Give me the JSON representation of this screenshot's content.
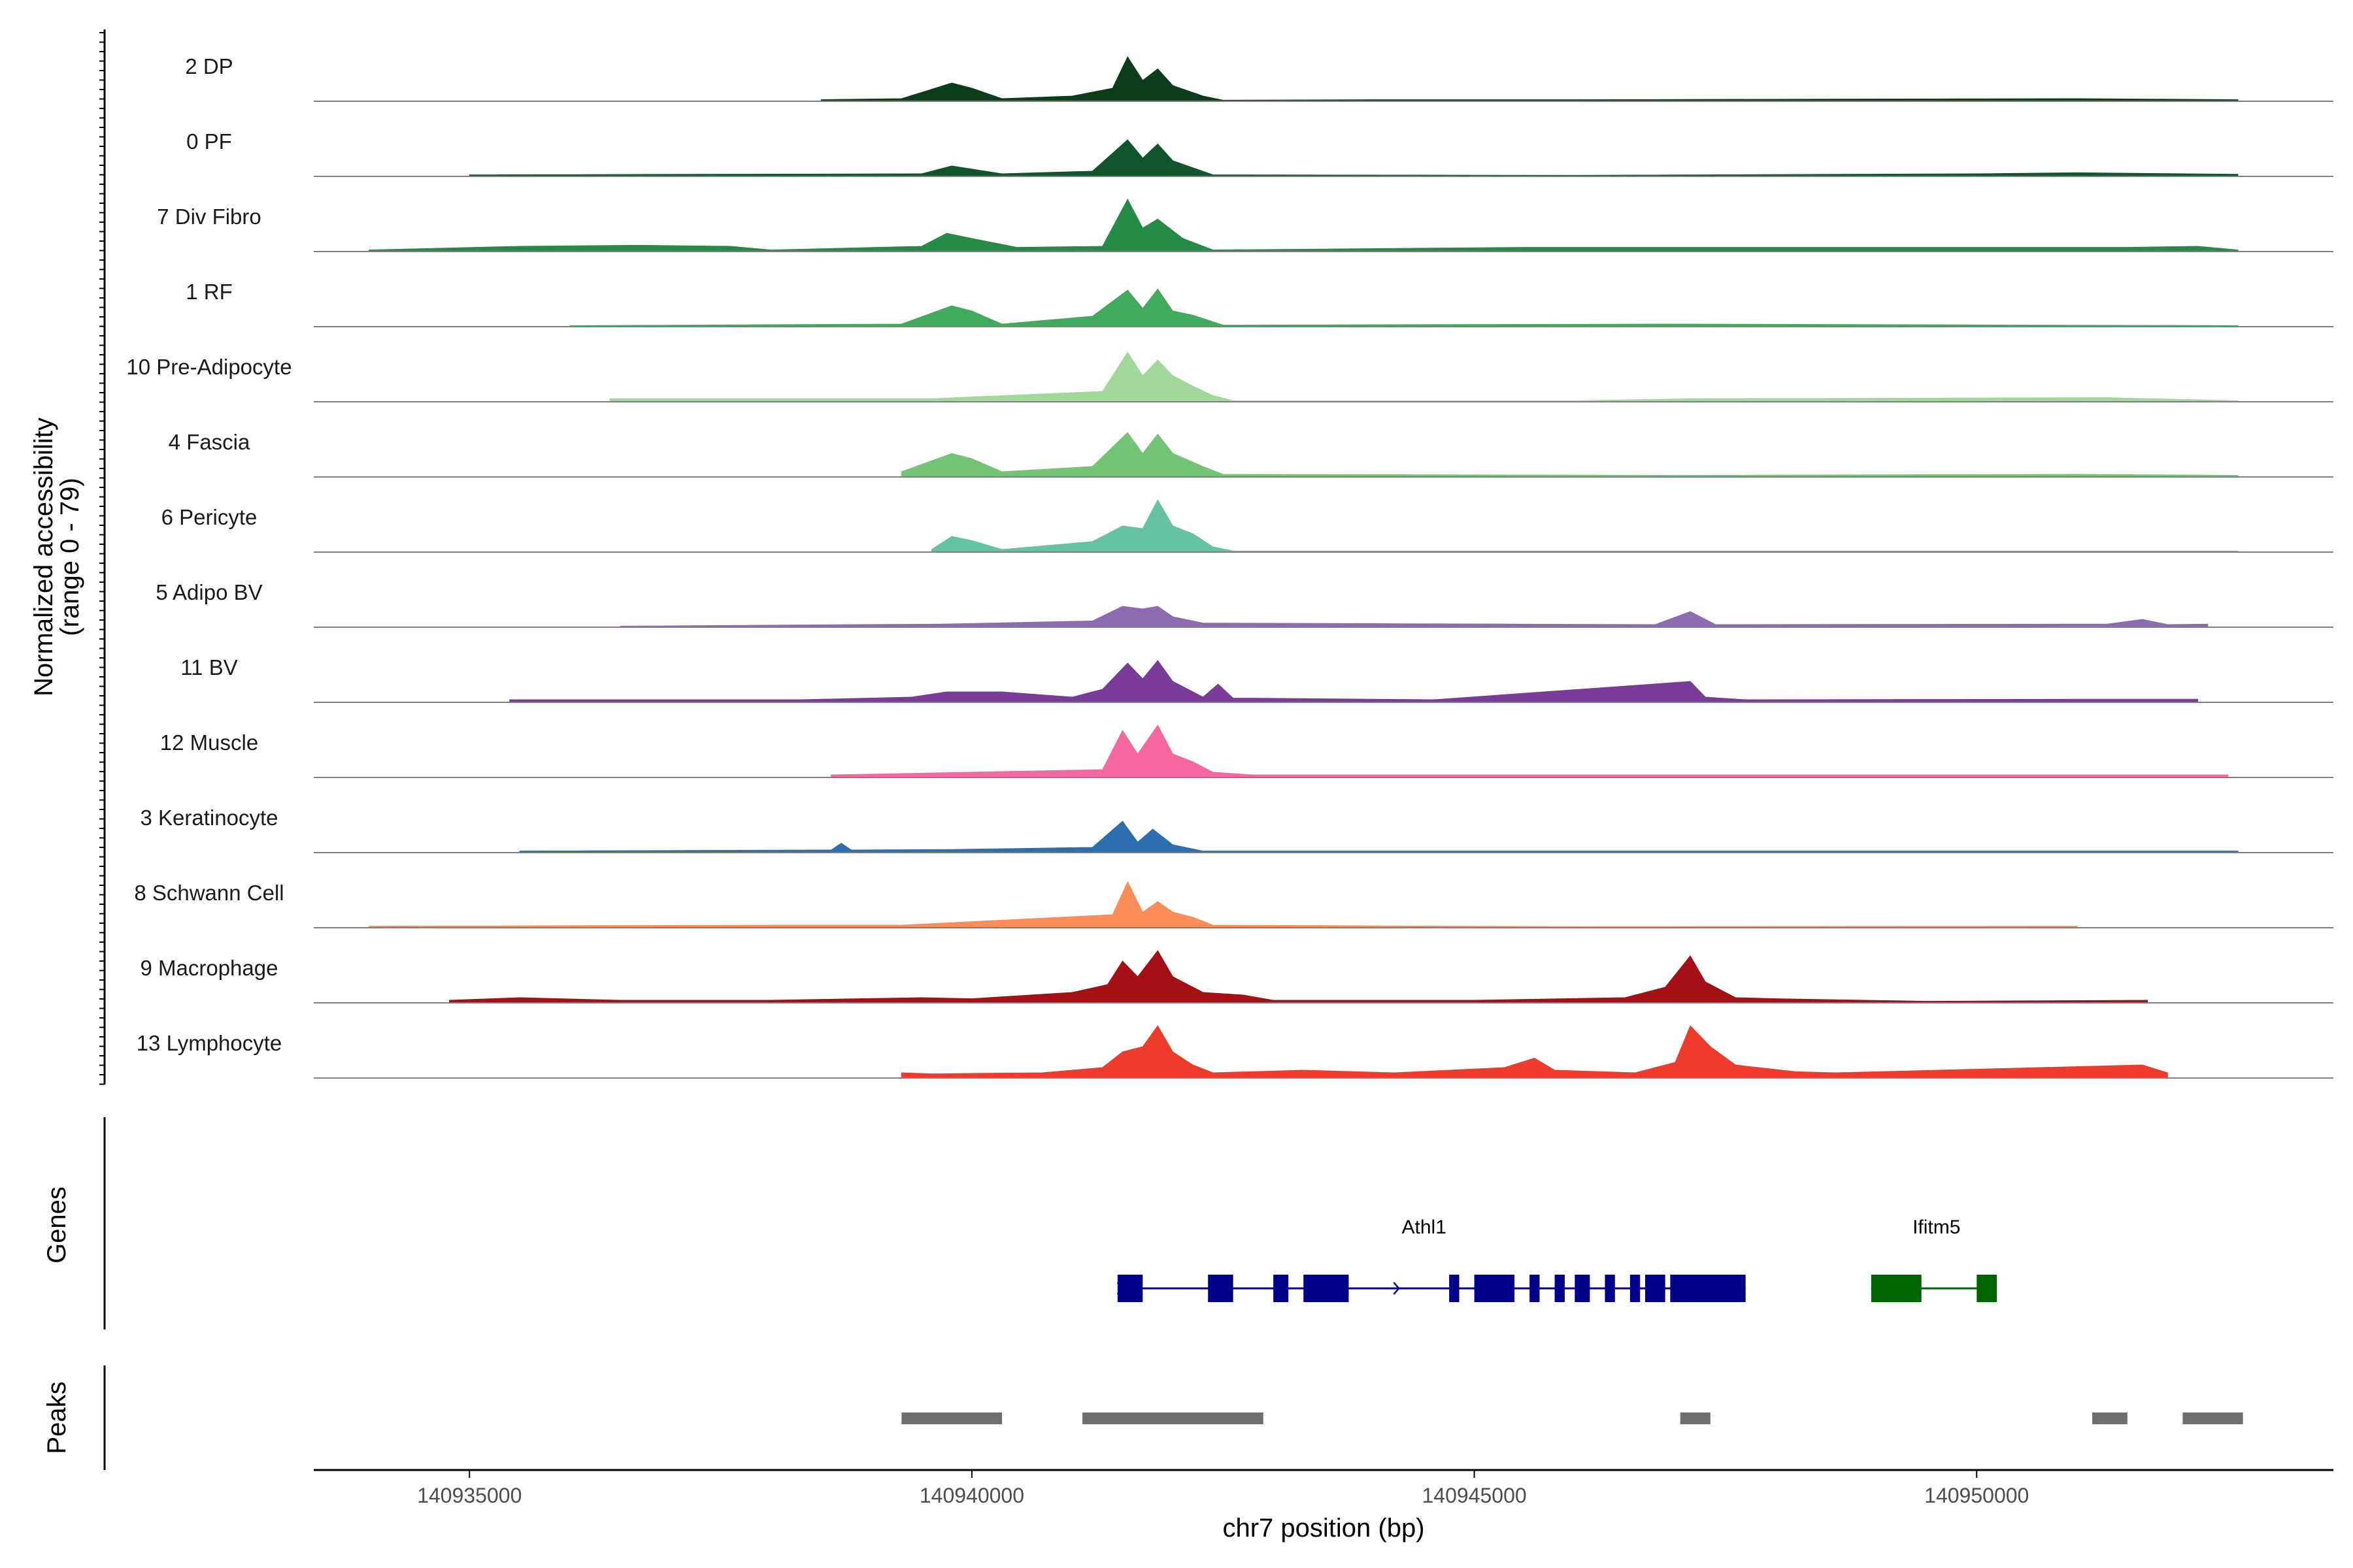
{
  "chart_data": {
    "type": "area",
    "chromosome": "chr7",
    "xlim": [
      140933450,
      140953550
    ],
    "xticks": [
      140935000,
      140940000,
      140945000,
      140950000
    ],
    "xlabel": "chr7 position (bp)",
    "ylabel": [
      "Normalized accessibility",
      "(range 0 - 79)"
    ],
    "genes_label": "Genes",
    "peaks_label": "Peaks",
    "tracks": [
      {
        "name": "2 DP",
        "color": "#0b3d1a",
        "points": [
          [
            140938500,
            0.03
          ],
          [
            140939300,
            0.05
          ],
          [
            140939800,
            0.35
          ],
          [
            140940000,
            0.25
          ],
          [
            140940300,
            0.05
          ],
          [
            140941000,
            0.1
          ],
          [
            140941400,
            0.25
          ],
          [
            140941550,
            0.85
          ],
          [
            140941700,
            0.4
          ],
          [
            140941850,
            0.62
          ],
          [
            140942000,
            0.3
          ],
          [
            140942300,
            0.1
          ],
          [
            140942500,
            0.02
          ],
          [
            140944000,
            0.03
          ],
          [
            140946000,
            0.03
          ],
          [
            140951000,
            0.05
          ],
          [
            140952600,
            0.03
          ]
        ]
      },
      {
        "name": "0 PF",
        "color": "#10562a",
        "points": [
          [
            140935000,
            0.03
          ],
          [
            140939500,
            0.05
          ],
          [
            140939800,
            0.2
          ],
          [
            140940300,
            0.05
          ],
          [
            140941200,
            0.1
          ],
          [
            140941550,
            0.7
          ],
          [
            140941700,
            0.35
          ],
          [
            140941850,
            0.62
          ],
          [
            140942000,
            0.3
          ],
          [
            140942400,
            0.03
          ],
          [
            140946000,
            0.02
          ],
          [
            140950000,
            0.05
          ],
          [
            140951000,
            0.07
          ],
          [
            140952600,
            0.04
          ]
        ]
      },
      {
        "name": "7 Div Fibro",
        "color": "#238b45",
        "points": [
          [
            140934000,
            0.03
          ],
          [
            140935500,
            0.1
          ],
          [
            140936700,
            0.12
          ],
          [
            140937600,
            0.1
          ],
          [
            140938000,
            0.03
          ],
          [
            140939500,
            0.1
          ],
          [
            140939750,
            0.35
          ],
          [
            140940000,
            0.25
          ],
          [
            140940450,
            0.08
          ],
          [
            140941300,
            0.1
          ],
          [
            140941550,
            1.0
          ],
          [
            140941700,
            0.45
          ],
          [
            140941850,
            0.62
          ],
          [
            140942100,
            0.25
          ],
          [
            140942400,
            0.03
          ],
          [
            140945500,
            0.08
          ],
          [
            140947200,
            0.08
          ],
          [
            140951500,
            0.08
          ],
          [
            140952200,
            0.1
          ],
          [
            140952600,
            0.03
          ]
        ]
      },
      {
        "name": "1 RF",
        "color": "#41ab5d",
        "points": [
          [
            140936000,
            0.02
          ],
          [
            140939300,
            0.05
          ],
          [
            140939800,
            0.4
          ],
          [
            140940000,
            0.3
          ],
          [
            140940300,
            0.05
          ],
          [
            140941200,
            0.2
          ],
          [
            140941550,
            0.7
          ],
          [
            140941700,
            0.35
          ],
          [
            140941850,
            0.72
          ],
          [
            140942000,
            0.3
          ],
          [
            140942200,
            0.22
          ],
          [
            140942500,
            0.03
          ],
          [
            140947000,
            0.05
          ],
          [
            140952600,
            0.02
          ]
        ]
      },
      {
        "name": "10 Pre-Adipocyte",
        "color": "#a1d99b",
        "points": [
          [
            140936400,
            0.06
          ],
          [
            140939600,
            0.06
          ],
          [
            140941300,
            0.2
          ],
          [
            140941550,
            0.95
          ],
          [
            140941700,
            0.5
          ],
          [
            140941850,
            0.8
          ],
          [
            140942000,
            0.5
          ],
          [
            140942200,
            0.3
          ],
          [
            140942400,
            0.12
          ],
          [
            140942600,
            0.02
          ],
          [
            140946000,
            0.02
          ],
          [
            140947200,
            0.06
          ],
          [
            140951300,
            0.08
          ],
          [
            140952600,
            0.02
          ]
        ]
      },
      {
        "name": "4 Fascia",
        "color": "#74c476",
        "points": [
          [
            140939300,
            0.1
          ],
          [
            140939800,
            0.45
          ],
          [
            140940000,
            0.35
          ],
          [
            140940300,
            0.1
          ],
          [
            140941200,
            0.2
          ],
          [
            140941550,
            0.85
          ],
          [
            140941700,
            0.45
          ],
          [
            140941850,
            0.82
          ],
          [
            140942000,
            0.45
          ],
          [
            140942300,
            0.2
          ],
          [
            140942500,
            0.05
          ],
          [
            140947000,
            0.03
          ],
          [
            140951000,
            0.05
          ],
          [
            140952600,
            0.03
          ]
        ]
      },
      {
        "name": "6 Pericyte",
        "color": "#66c2a5",
        "points": [
          [
            140939600,
            0.05
          ],
          [
            140939800,
            0.3
          ],
          [
            140940000,
            0.22
          ],
          [
            140940300,
            0.05
          ],
          [
            140941200,
            0.2
          ],
          [
            140941500,
            0.5
          ],
          [
            140941700,
            0.45
          ],
          [
            140941850,
            1.0
          ],
          [
            140942000,
            0.5
          ],
          [
            140942200,
            0.35
          ],
          [
            140942400,
            0.1
          ],
          [
            140942600,
            0.02
          ],
          [
            140946000,
            0.02
          ],
          [
            140952600,
            0.02
          ]
        ]
      },
      {
        "name": "5 Adipo BV",
        "color": "#8c6bb1",
        "points": [
          [
            140936500,
            0.02
          ],
          [
            140939700,
            0.06
          ],
          [
            140941200,
            0.12
          ],
          [
            140941500,
            0.4
          ],
          [
            140941700,
            0.35
          ],
          [
            140941850,
            0.4
          ],
          [
            140942000,
            0.2
          ],
          [
            140942300,
            0.08
          ],
          [
            140946800,
            0.05
          ],
          [
            140947150,
            0.3
          ],
          [
            140947400,
            0.05
          ],
          [
            140951300,
            0.06
          ],
          [
            140951650,
            0.15
          ],
          [
            140951900,
            0.05
          ],
          [
            140952300,
            0.06
          ]
        ]
      },
      {
        "name": "11 BV",
        "color": "#7a3a98",
        "points": [
          [
            140935400,
            0.05
          ],
          [
            140937200,
            0.05
          ],
          [
            140938300,
            0.05
          ],
          [
            140939400,
            0.1
          ],
          [
            140939750,
            0.2
          ],
          [
            140940300,
            0.2
          ],
          [
            140941000,
            0.1
          ],
          [
            140941300,
            0.25
          ],
          [
            140941550,
            0.75
          ],
          [
            140941700,
            0.45
          ],
          [
            140941850,
            0.8
          ],
          [
            140942000,
            0.4
          ],
          [
            140942300,
            0.1
          ],
          [
            140942450,
            0.35
          ],
          [
            140942600,
            0.08
          ],
          [
            140942800,
            0.08
          ],
          [
            140944600,
            0.05
          ],
          [
            140947150,
            0.4
          ],
          [
            140947300,
            0.1
          ],
          [
            140947700,
            0.05
          ],
          [
            140951400,
            0.06
          ],
          [
            140952200,
            0.06
          ]
        ]
      },
      {
        "name": "12 Muscle",
        "color": "#f768a1",
        "points": [
          [
            140938600,
            0.05
          ],
          [
            140941300,
            0.15
          ],
          [
            140941500,
            0.9
          ],
          [
            140941650,
            0.45
          ],
          [
            140941850,
            1.0
          ],
          [
            140942000,
            0.45
          ],
          [
            140942200,
            0.3
          ],
          [
            140942400,
            0.1
          ],
          [
            140942800,
            0.05
          ],
          [
            140948000,
            0.05
          ],
          [
            140950300,
            0.05
          ],
          [
            140952100,
            0.05
          ],
          [
            140952500,
            0.05
          ]
        ]
      },
      {
        "name": "3 Keratinocyte",
        "color": "#2c6fb0",
        "points": [
          [
            140935500,
            0.03
          ],
          [
            140938600,
            0.05
          ],
          [
            140938700,
            0.18
          ],
          [
            140938800,
            0.05
          ],
          [
            140939800,
            0.06
          ],
          [
            140941200,
            0.1
          ],
          [
            140941500,
            0.6
          ],
          [
            140941650,
            0.2
          ],
          [
            140941800,
            0.45
          ],
          [
            140942000,
            0.15
          ],
          [
            140942300,
            0.03
          ],
          [
            140948000,
            0.03
          ],
          [
            140952600,
            0.03
          ]
        ]
      },
      {
        "name": "8 Schwann Cell",
        "color": "#fc8d59",
        "points": [
          [
            140934000,
            0.03
          ],
          [
            140938100,
            0.05
          ],
          [
            140939300,
            0.05
          ],
          [
            140941400,
            0.25
          ],
          [
            140941550,
            0.88
          ],
          [
            140941700,
            0.3
          ],
          [
            140941850,
            0.5
          ],
          [
            140942000,
            0.3
          ],
          [
            140942200,
            0.2
          ],
          [
            140942400,
            0.05
          ],
          [
            140946000,
            0.02
          ],
          [
            140951000,
            0.03
          ]
        ]
      },
      {
        "name": "9 Macrophage",
        "color": "#a50f15",
        "points": [
          [
            140934800,
            0.05
          ],
          [
            140935500,
            0.1
          ],
          [
            140936500,
            0.05
          ],
          [
            140938000,
            0.05
          ],
          [
            140939500,
            0.1
          ],
          [
            140940000,
            0.08
          ],
          [
            140941000,
            0.2
          ],
          [
            140941350,
            0.35
          ],
          [
            140941500,
            0.8
          ],
          [
            140941650,
            0.5
          ],
          [
            140941850,
            1.0
          ],
          [
            140942000,
            0.5
          ],
          [
            140942300,
            0.2
          ],
          [
            140942700,
            0.15
          ],
          [
            140943000,
            0.05
          ],
          [
            140945000,
            0.05
          ],
          [
            140946500,
            0.1
          ],
          [
            140946900,
            0.3
          ],
          [
            140947150,
            0.9
          ],
          [
            140947300,
            0.4
          ],
          [
            140947600,
            0.1
          ],
          [
            140948000,
            0.08
          ],
          [
            140949500,
            0.03
          ],
          [
            140951700,
            0.05
          ]
        ]
      },
      {
        "name": "13 Lymphocyte",
        "color": "#ef3b2c",
        "points": [
          [
            140939300,
            0.1
          ],
          [
            140939600,
            0.08
          ],
          [
            140940700,
            0.1
          ],
          [
            140941300,
            0.2
          ],
          [
            140941500,
            0.5
          ],
          [
            140941700,
            0.6
          ],
          [
            140941850,
            1.0
          ],
          [
            140942000,
            0.5
          ],
          [
            140942200,
            0.25
          ],
          [
            140942400,
            0.1
          ],
          [
            140943300,
            0.15
          ],
          [
            140944200,
            0.1
          ],
          [
            140945300,
            0.2
          ],
          [
            140945600,
            0.38
          ],
          [
            140945800,
            0.15
          ],
          [
            140946600,
            0.1
          ],
          [
            140947000,
            0.3
          ],
          [
            140947150,
            1.0
          ],
          [
            140947350,
            0.6
          ],
          [
            140947600,
            0.25
          ],
          [
            140948200,
            0.12
          ],
          [
            140948600,
            0.1
          ],
          [
            140951650,
            0.25
          ],
          [
            140951900,
            0.1
          ]
        ]
      }
    ],
    "genes": [
      {
        "name": "Athl1",
        "strand": "+",
        "color": "#00008b",
        "start": 140941450,
        "end": 140947700,
        "exons": [
          [
            140941450,
            140941700
          ],
          [
            140942350,
            140942600
          ],
          [
            140943000,
            140943150
          ],
          [
            140943300,
            140943750
          ],
          [
            140944750,
            140944850
          ],
          [
            140945000,
            140945400
          ],
          [
            140945550,
            140945650
          ],
          [
            140945800,
            140945900
          ],
          [
            140946000,
            140946150
          ],
          [
            140946300,
            140946400
          ],
          [
            140946550,
            140946650
          ],
          [
            140946700,
            140946900
          ],
          [
            140946950,
            140947700
          ]
        ]
      },
      {
        "name": "Ifitm5",
        "strand": "-",
        "color": "#006400",
        "start": 140948950,
        "end": 140950200,
        "exons": [
          [
            140948950,
            140949450
          ],
          [
            140950000,
            140950200
          ]
        ]
      }
    ],
    "peaks": [
      [
        140939300,
        140940300
      ],
      [
        140941100,
        140942900
      ],
      [
        140947050,
        140947350
      ],
      [
        140951150,
        140951500
      ],
      [
        140952050,
        140952650
      ]
    ]
  }
}
